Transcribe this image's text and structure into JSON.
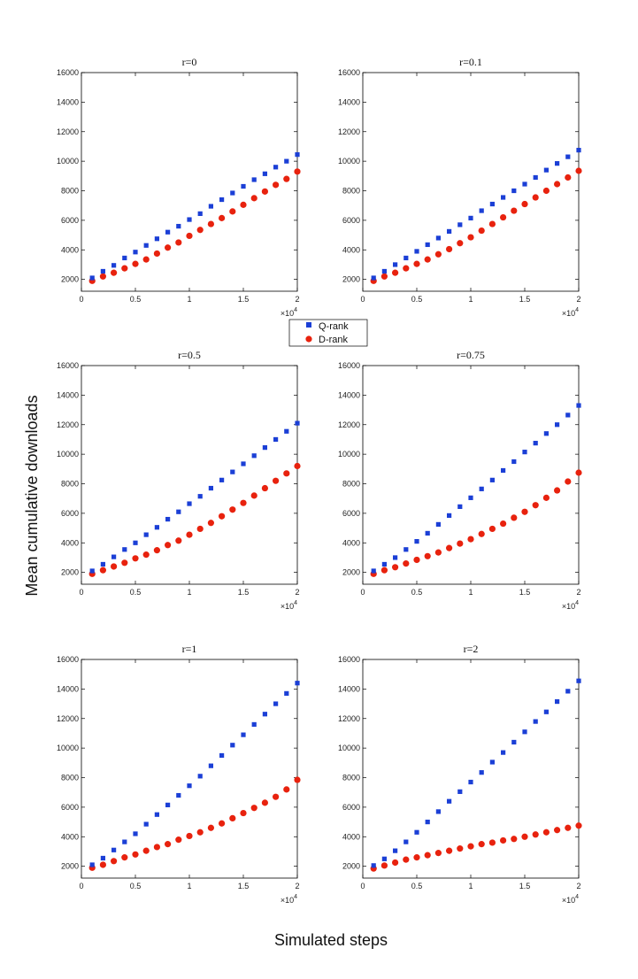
{
  "figure": {
    "ylabel": "Mean cumulative downloads",
    "xlabel": "Simulated steps",
    "multiplier_base": "×10",
    "multiplier_exp": "4"
  },
  "legend": {
    "entries": [
      "Q-rank",
      "D-rank"
    ]
  },
  "colors": {
    "q_rank": "#1b3fd6",
    "d_rank": "#e8220e",
    "axis": "#000000"
  },
  "chart_data": [
    {
      "type": "scatter",
      "title": "r=0",
      "x": [
        1000,
        2000,
        3000,
        4000,
        5000,
        6000,
        7000,
        8000,
        9000,
        10000,
        11000,
        12000,
        13000,
        14000,
        15000,
        16000,
        17000,
        18000,
        19000,
        20000
      ],
      "series": [
        {
          "name": "Q-rank",
          "values": [
            2100,
            2550,
            2950,
            3450,
            3850,
            4300,
            4750,
            5200,
            5600,
            6050,
            6450,
            6950,
            7400,
            7850,
            8300,
            8750,
            9150,
            9600,
            10000,
            10450
          ]
        },
        {
          "name": "D-rank",
          "values": [
            1900,
            2200,
            2450,
            2750,
            3050,
            3350,
            3750,
            4150,
            4500,
            4950,
            5350,
            5750,
            6150,
            6600,
            7050,
            7500,
            7950,
            8400,
            8800,
            9300
          ]
        }
      ],
      "xlim": [
        0,
        20000
      ],
      "ylim": [
        1200,
        16000
      ],
      "xticks": [
        0,
        5000,
        10000,
        15000,
        20000
      ],
      "xtick_labels": [
        "0",
        "0.5",
        "1",
        "1.5",
        "2"
      ],
      "yticks": [
        2000,
        4000,
        6000,
        8000,
        10000,
        12000,
        14000,
        16000
      ],
      "ytick_labels": [
        "2000",
        "4000",
        "6000",
        "8000",
        "10000",
        "12000",
        "14000",
        "16000"
      ]
    },
    {
      "type": "scatter",
      "title": "r=0.1",
      "x": [
        1000,
        2000,
        3000,
        4000,
        5000,
        6000,
        7000,
        8000,
        9000,
        10000,
        11000,
        12000,
        13000,
        14000,
        15000,
        16000,
        17000,
        18000,
        19000,
        20000
      ],
      "series": [
        {
          "name": "Q-rank",
          "values": [
            2100,
            2550,
            3000,
            3450,
            3900,
            4350,
            4800,
            5250,
            5700,
            6150,
            6650,
            7100,
            7550,
            8000,
            8450,
            8900,
            9400,
            9850,
            10300,
            10750
          ]
        },
        {
          "name": "D-rank",
          "values": [
            1900,
            2200,
            2450,
            2750,
            3050,
            3350,
            3700,
            4050,
            4450,
            4850,
            5300,
            5750,
            6200,
            6650,
            7100,
            7550,
            8000,
            8450,
            8900,
            9350
          ]
        }
      ],
      "xlim": [
        0,
        20000
      ],
      "ylim": [
        1200,
        16000
      ],
      "xticks": [
        0,
        5000,
        10000,
        15000,
        20000
      ],
      "xtick_labels": [
        "0",
        "0.5",
        "1",
        "1.5",
        "2"
      ],
      "yticks": [
        2000,
        4000,
        6000,
        8000,
        10000,
        12000,
        14000,
        16000
      ],
      "ytick_labels": [
        "2000",
        "4000",
        "6000",
        "8000",
        "10000",
        "12000",
        "14000",
        "16000"
      ]
    },
    {
      "type": "scatter",
      "title": "r=0.5",
      "x": [
        1000,
        2000,
        3000,
        4000,
        5000,
        6000,
        7000,
        8000,
        9000,
        10000,
        11000,
        12000,
        13000,
        14000,
        15000,
        16000,
        17000,
        18000,
        19000,
        20000
      ],
      "series": [
        {
          "name": "Q-rank",
          "values": [
            2100,
            2550,
            3050,
            3550,
            4000,
            4550,
            5050,
            5600,
            6100,
            6650,
            7150,
            7700,
            8250,
            8800,
            9350,
            9900,
            10450,
            11000,
            11550,
            12100
          ]
        },
        {
          "name": "D-rank",
          "values": [
            1900,
            2150,
            2400,
            2650,
            2950,
            3200,
            3500,
            3850,
            4150,
            4550,
            4950,
            5350,
            5800,
            6250,
            6700,
            7200,
            7700,
            8200,
            8700,
            9200
          ]
        }
      ],
      "xlim": [
        0,
        20000
      ],
      "ylim": [
        1200,
        16000
      ],
      "xticks": [
        0,
        5000,
        10000,
        15000,
        20000
      ],
      "xtick_labels": [
        "0",
        "0.5",
        "1",
        "1.5",
        "2"
      ],
      "yticks": [
        2000,
        4000,
        6000,
        8000,
        10000,
        12000,
        14000,
        16000
      ],
      "ytick_labels": [
        "2000",
        "4000",
        "6000",
        "8000",
        "10000",
        "12000",
        "14000",
        "16000"
      ]
    },
    {
      "type": "scatter",
      "title": "r=0.75",
      "x": [
        1000,
        2000,
        3000,
        4000,
        5000,
        6000,
        7000,
        8000,
        9000,
        10000,
        11000,
        12000,
        13000,
        14000,
        15000,
        16000,
        17000,
        18000,
        19000,
        20000
      ],
      "series": [
        {
          "name": "Q-rank",
          "values": [
            2100,
            2550,
            3000,
            3550,
            4100,
            4650,
            5250,
            5850,
            6450,
            7050,
            7650,
            8250,
            8900,
            9500,
            10150,
            10750,
            11400,
            12000,
            12650,
            13300
          ]
        },
        {
          "name": "D-rank",
          "values": [
            1900,
            2150,
            2350,
            2600,
            2850,
            3100,
            3350,
            3650,
            3950,
            4250,
            4600,
            4950,
            5300,
            5700,
            6100,
            6550,
            7050,
            7550,
            8150,
            8750
          ]
        }
      ],
      "xlim": [
        0,
        20000
      ],
      "ylim": [
        1200,
        16000
      ],
      "xticks": [
        0,
        5000,
        10000,
        15000,
        20000
      ],
      "xtick_labels": [
        "0",
        "0.5",
        "1",
        "1.5",
        "2"
      ],
      "yticks": [
        2000,
        4000,
        6000,
        8000,
        10000,
        12000,
        14000,
        16000
      ],
      "ytick_labels": [
        "2000",
        "4000",
        "6000",
        "8000",
        "10000",
        "12000",
        "14000",
        "16000"
      ]
    },
    {
      "type": "scatter",
      "title": "r=1",
      "x": [
        1000,
        2000,
        3000,
        4000,
        5000,
        6000,
        7000,
        8000,
        9000,
        10000,
        11000,
        12000,
        13000,
        14000,
        15000,
        16000,
        17000,
        18000,
        19000,
        20000
      ],
      "series": [
        {
          "name": "Q-rank",
          "values": [
            2100,
            2550,
            3100,
            3650,
            4200,
            4850,
            5500,
            6150,
            6800,
            7450,
            8100,
            8800,
            9500,
            10200,
            10900,
            11600,
            12300,
            13000,
            13700,
            14400
          ]
        },
        {
          "name": "D-rank",
          "values": [
            1900,
            2100,
            2350,
            2600,
            2800,
            3050,
            3300,
            3500,
            3800,
            4050,
            4300,
            4600,
            4900,
            5250,
            5600,
            5950,
            6300,
            6700,
            7200,
            7850
          ]
        }
      ],
      "xlim": [
        0,
        20000
      ],
      "ylim": [
        1200,
        16000
      ],
      "xticks": [
        0,
        5000,
        10000,
        15000,
        20000
      ],
      "xtick_labels": [
        "0",
        "0.5",
        "1",
        "1.5",
        "2"
      ],
      "yticks": [
        2000,
        4000,
        6000,
        8000,
        10000,
        12000,
        14000,
        16000
      ],
      "ytick_labels": [
        "2000",
        "4000",
        "6000",
        "8000",
        "10000",
        "12000",
        "14000",
        "16000"
      ]
    },
    {
      "type": "scatter",
      "title": "r=2",
      "x": [
        1000,
        2000,
        3000,
        4000,
        5000,
        6000,
        7000,
        8000,
        9000,
        10000,
        11000,
        12000,
        13000,
        14000,
        15000,
        16000,
        17000,
        18000,
        19000,
        20000
      ],
      "series": [
        {
          "name": "Q-rank",
          "values": [
            2050,
            2500,
            3050,
            3650,
            4300,
            5000,
            5700,
            6400,
            7050,
            7700,
            8350,
            9050,
            9700,
            10400,
            11100,
            11800,
            12450,
            13150,
            13850,
            14550
          ]
        },
        {
          "name": "D-rank",
          "values": [
            1850,
            2050,
            2250,
            2450,
            2600,
            2750,
            2900,
            3050,
            3200,
            3350,
            3500,
            3600,
            3750,
            3850,
            4000,
            4150,
            4300,
            4450,
            4600,
            4750
          ]
        }
      ],
      "xlim": [
        0,
        20000
      ],
      "ylim": [
        1200,
        16000
      ],
      "xticks": [
        0,
        5000,
        10000,
        15000,
        20000
      ],
      "xtick_labels": [
        "0",
        "0.5",
        "1",
        "1.5",
        "2"
      ],
      "yticks": [
        2000,
        4000,
        6000,
        8000,
        10000,
        12000,
        14000,
        16000
      ],
      "ytick_labels": [
        "2000",
        "4000",
        "6000",
        "8000",
        "10000",
        "12000",
        "14000",
        "16000"
      ]
    }
  ]
}
